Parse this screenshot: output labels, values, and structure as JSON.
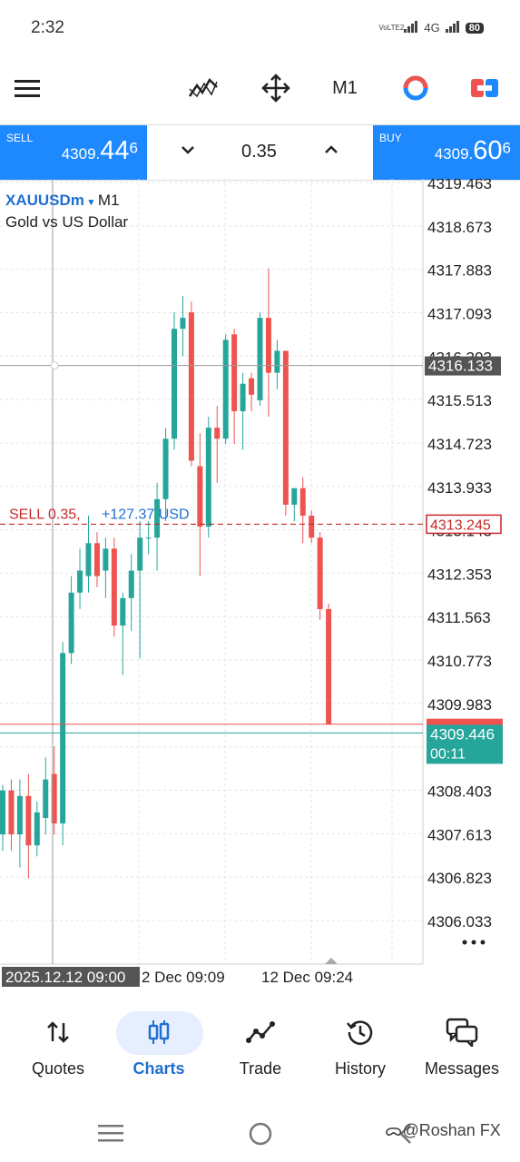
{
  "status_bar": {
    "time": "2:32",
    "network": "4G",
    "volte": "VoLTE2",
    "battery": "80"
  },
  "toolbar": {
    "items": [
      "hamburger-menu-icon",
      "indicators-icon",
      "crosshair-move-icon",
      "M1",
      "objects-icon",
      "one-click-trading-icon"
    ]
  },
  "trade": {
    "sell_label": "SELL",
    "sell_main": "4309.",
    "sell_big": "44",
    "sell_sup": "6",
    "buy_label": "BUY",
    "buy_main": "4309.",
    "buy_big": "60",
    "buy_sup": "6",
    "volume": "0.35"
  },
  "chart_info": {
    "symbol": "XAUUSDm",
    "timeframe": "M1",
    "description": "Gold vs US Dollar",
    "order_line_label": "SELL 0.35,  +127.37 USD",
    "price_ticks": [
      "4319.463",
      "4318.673",
      "4317.883",
      "4317.093",
      "4316.303",
      "4315.513",
      "4314.723",
      "4313.933",
      "4313.143",
      "4312.353",
      "4311.563",
      "4310.773",
      "4309.983",
      "4309.193",
      "4308.403",
      "4307.613",
      "4306.823",
      "4306.033"
    ],
    "crosshair_price": "4316.133",
    "order_price": "4313.245",
    "ask_price": "4309.606",
    "bid_price": "4309.446",
    "countdown": "00:11",
    "time_labels": [
      "2025.12.12 09:00",
      "12 Dec 09:09",
      "12 Dec 09:24"
    ],
    "more_icon": "more-dots-icon"
  },
  "chart_data": {
    "type": "candlestick",
    "symbol": "XAUUSDm",
    "timeframe": "M1",
    "ylim": [
      4305.8,
      4319.5
    ],
    "bull_color": "#26a69a",
    "bear_color": "#ef5350",
    "candles": [
      {
        "o": 4307.6,
        "h": 4308.5,
        "l": 4307.3,
        "c": 4308.4
      },
      {
        "o": 4308.4,
        "h": 4308.6,
        "l": 4307.3,
        "c": 4307.6
      },
      {
        "o": 4307.6,
        "h": 4308.6,
        "l": 4307.0,
        "c": 4308.3
      },
      {
        "o": 4308.3,
        "h": 4308.7,
        "l": 4306.8,
        "c": 4307.4
      },
      {
        "o": 4307.4,
        "h": 4308.2,
        "l": 4307.2,
        "c": 4308.0
      },
      {
        "o": 4307.9,
        "h": 4309.0,
        "l": 4307.6,
        "c": 4308.6
      },
      {
        "o": 4308.7,
        "h": 4309.2,
        "l": 4307.6,
        "c": 4307.8
      },
      {
        "o": 4307.8,
        "h": 4311.1,
        "l": 4307.4,
        "c": 4310.9
      },
      {
        "o": 4310.9,
        "h": 4312.3,
        "l": 4310.7,
        "c": 4312.0
      },
      {
        "o": 4312.0,
        "h": 4312.8,
        "l": 4311.7,
        "c": 4312.4
      },
      {
        "o": 4312.3,
        "h": 4313.4,
        "l": 4312.0,
        "c": 4312.9
      },
      {
        "o": 4312.9,
        "h": 4313.1,
        "l": 4312.1,
        "c": 4312.3
      },
      {
        "o": 4312.4,
        "h": 4313.0,
        "l": 4311.9,
        "c": 4312.8
      },
      {
        "o": 4312.8,
        "h": 4313.0,
        "l": 4311.2,
        "c": 4311.4
      },
      {
        "o": 4311.4,
        "h": 4312.0,
        "l": 4310.5,
        "c": 4311.9
      },
      {
        "o": 4311.9,
        "h": 4312.7,
        "l": 4311.3,
        "c": 4312.4
      },
      {
        "o": 4312.4,
        "h": 4313.3,
        "l": 4310.8,
        "c": 4313.0
      },
      {
        "o": 4313.0,
        "h": 4313.3,
        "l": 4312.7,
        "c": 4313.0
      },
      {
        "o": 4313.0,
        "h": 4314.0,
        "l": 4312.4,
        "c": 4313.7
      },
      {
        "o": 4313.7,
        "h": 4315.0,
        "l": 4313.3,
        "c": 4314.8
      },
      {
        "o": 4314.8,
        "h": 4317.1,
        "l": 4314.6,
        "c": 4316.8
      },
      {
        "o": 4316.8,
        "h": 4317.4,
        "l": 4316.3,
        "c": 4317.0
      },
      {
        "o": 4317.1,
        "h": 4317.3,
        "l": 4314.3,
        "c": 4314.4
      },
      {
        "o": 4314.3,
        "h": 4314.9,
        "l": 4312.3,
        "c": 4313.2
      },
      {
        "o": 4313.2,
        "h": 4315.2,
        "l": 4313.0,
        "c": 4315.0
      },
      {
        "o": 4315.0,
        "h": 4315.4,
        "l": 4314.0,
        "c": 4314.8
      },
      {
        "o": 4314.8,
        "h": 4316.7,
        "l": 4314.7,
        "c": 4316.6
      },
      {
        "o": 4316.7,
        "h": 4316.8,
        "l": 4314.7,
        "c": 4315.3
      },
      {
        "o": 4315.3,
        "h": 4316.0,
        "l": 4314.6,
        "c": 4315.8
      },
      {
        "o": 4315.9,
        "h": 4316.0,
        "l": 4315.3,
        "c": 4315.6
      },
      {
        "o": 4315.5,
        "h": 4317.1,
        "l": 4315.4,
        "c": 4317.0
      },
      {
        "o": 4317.0,
        "h": 4317.9,
        "l": 4315.2,
        "c": 4316.0
      },
      {
        "o": 4316.0,
        "h": 4316.6,
        "l": 4315.7,
        "c": 4316.4
      },
      {
        "o": 4316.4,
        "h": 4316.4,
        "l": 4313.4,
        "c": 4313.6
      },
      {
        "o": 4313.6,
        "h": 4313.9,
        "l": 4313.3,
        "c": 4313.9
      },
      {
        "o": 4313.9,
        "h": 4314.1,
        "l": 4312.9,
        "c": 4313.4
      },
      {
        "o": 4313.4,
        "h": 4313.5,
        "l": 4312.9,
        "c": 4313.0
      },
      {
        "o": 4313.0,
        "h": 4313.1,
        "l": 4311.5,
        "c": 4311.7
      },
      {
        "o": 4311.7,
        "h": 4311.8,
        "l": 4309.6,
        "c": 4309.6
      }
    ]
  },
  "bottom_nav": {
    "items": [
      {
        "label": "Quotes",
        "icon": "quotes-arrows-icon"
      },
      {
        "label": "Charts",
        "icon": "charts-candles-icon"
      },
      {
        "label": "Trade",
        "icon": "trade-line-icon"
      },
      {
        "label": "History",
        "icon": "history-clock-icon"
      },
      {
        "label": "Messages",
        "icon": "messages-chat-icon"
      }
    ],
    "active": "Charts"
  },
  "watermark": "@Roshan FX"
}
